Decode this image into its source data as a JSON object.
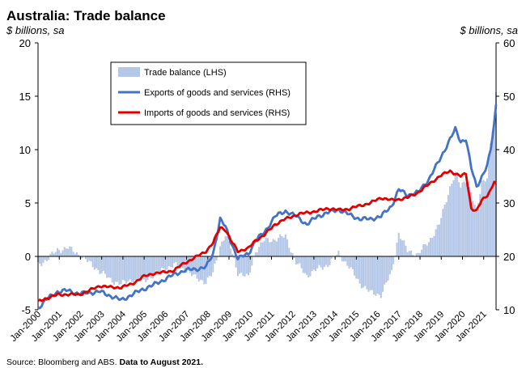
{
  "chart_data": {
    "type": "bar+line",
    "title": "Australia: Trade balance",
    "left_axis_label": "$ billions, sa",
    "right_axis_label": "$ billions, sa",
    "left_axis": {
      "min": -5,
      "max": 20,
      "ticks": [
        -5,
        0,
        5,
        10,
        15,
        20
      ]
    },
    "right_axis": {
      "min": 10,
      "max": 60,
      "ticks": [
        10,
        20,
        30,
        40,
        50,
        60
      ]
    },
    "x_tick_labels": [
      "Jan-2000",
      "Jan-2001",
      "Jan-2002",
      "Jan-2003",
      "Jan-2004",
      "Jan-2005",
      "Jan-2006",
      "Jan-2007",
      "Jan-2008",
      "Jan-2009",
      "Jan-2010",
      "Jan-2011",
      "Jan-2012",
      "Jan-2013",
      "Jan-2014",
      "Jan-2015",
      "Jan-2016",
      "Jan-2017",
      "Jan-2018",
      "Jan-2019",
      "Jan-2020",
      "Jan-2021"
    ],
    "x_range": [
      "Jan-2000",
      "Aug-2021"
    ],
    "legend_position": "top-left",
    "series": [
      {
        "name": "Trade balance (LHS)",
        "kind": "bar",
        "axis": "left",
        "color": "#b4c7e7",
        "anchors": [
          [
            "2000-01",
            -0.8
          ],
          [
            "2000-06",
            -0.3
          ],
          [
            "2000-12",
            0.6
          ],
          [
            "2001-06",
            0.8
          ],
          [
            "2001-12",
            0.2
          ],
          [
            "2002-06",
            -0.6
          ],
          [
            "2002-12",
            -1.4
          ],
          [
            "2003-06",
            -2.2
          ],
          [
            "2003-12",
            -2.6
          ],
          [
            "2004-06",
            -2.2
          ],
          [
            "2004-12",
            -2.4
          ],
          [
            "2005-06",
            -1.8
          ],
          [
            "2005-12",
            -1.2
          ],
          [
            "2006-06",
            -0.8
          ],
          [
            "2006-12",
            -1.2
          ],
          [
            "2007-06",
            -2.0
          ],
          [
            "2007-12",
            -2.4
          ],
          [
            "2008-04",
            -1.6
          ],
          [
            "2008-08",
            1.0
          ],
          [
            "2008-11",
            2.0
          ],
          [
            "2009-02",
            0.8
          ],
          [
            "2009-06",
            -1.5
          ],
          [
            "2009-12",
            -2.0
          ],
          [
            "2010-04",
            0.5
          ],
          [
            "2010-09",
            1.5
          ],
          [
            "2011-03",
            1.6
          ],
          [
            "2011-09",
            1.9
          ],
          [
            "2012-03",
            -0.6
          ],
          [
            "2012-09",
            -1.8
          ],
          [
            "2013-03",
            -1.2
          ],
          [
            "2013-09",
            -0.8
          ],
          [
            "2014-03",
            0.3
          ],
          [
            "2014-09",
            -1.0
          ],
          [
            "2015-03",
            -2.5
          ],
          [
            "2015-09",
            -3.4
          ],
          [
            "2016-03",
            -3.6
          ],
          [
            "2016-09",
            -1.5
          ],
          [
            "2017-01",
            2.2
          ],
          [
            "2017-06",
            0.5
          ],
          [
            "2017-12",
            0.2
          ],
          [
            "2018-06",
            1.4
          ],
          [
            "2018-12",
            3.0
          ],
          [
            "2019-06",
            6.5
          ],
          [
            "2019-09",
            7.8
          ],
          [
            "2019-12",
            6.5
          ],
          [
            "2020-03",
            7.2
          ],
          [
            "2020-06",
            6.0
          ],
          [
            "2020-09",
            4.0
          ],
          [
            "2020-12",
            7.0
          ],
          [
            "2021-03",
            7.5
          ],
          [
            "2021-05",
            10.5
          ],
          [
            "2021-07",
            13.0
          ],
          [
            "2021-08",
            15.1
          ]
        ]
      },
      {
        "name": "Exports of goods and services (RHS)",
        "kind": "line",
        "axis": "right",
        "color": "#4472c4",
        "anchors": [
          [
            "2000-01",
            10.3
          ],
          [
            "2000-06",
            12.0
          ],
          [
            "2000-12",
            13.4
          ],
          [
            "2001-06",
            13.6
          ],
          [
            "2001-12",
            13.0
          ],
          [
            "2002-06",
            13.2
          ],
          [
            "2002-12",
            13.4
          ],
          [
            "2003-06",
            12.6
          ],
          [
            "2003-12",
            11.8
          ],
          [
            "2004-06",
            12.8
          ],
          [
            "2004-12",
            13.8
          ],
          [
            "2005-06",
            14.6
          ],
          [
            "2005-12",
            15.6
          ],
          [
            "2006-06",
            16.6
          ],
          [
            "2006-12",
            17.4
          ],
          [
            "2007-06",
            17.6
          ],
          [
            "2007-12",
            18.0
          ],
          [
            "2008-04",
            20.5
          ],
          [
            "2008-08",
            27.0
          ],
          [
            "2008-11",
            25.5
          ],
          [
            "2009-02",
            22.8
          ],
          [
            "2009-06",
            19.6
          ],
          [
            "2009-12",
            20.5
          ],
          [
            "2010-04",
            23.0
          ],
          [
            "2010-09",
            24.5
          ],
          [
            "2011-03",
            27.5
          ],
          [
            "2011-09",
            28.5
          ],
          [
            "2012-03",
            27.5
          ],
          [
            "2012-09",
            26.0
          ],
          [
            "2013-03",
            27.5
          ],
          [
            "2013-09",
            28.2
          ],
          [
            "2014-03",
            28.8
          ],
          [
            "2014-09",
            27.8
          ],
          [
            "2015-03",
            27.0
          ],
          [
            "2015-09",
            27.0
          ],
          [
            "2016-03",
            27.5
          ],
          [
            "2016-09",
            29.5
          ],
          [
            "2017-01",
            32.5
          ],
          [
            "2017-06",
            31.5
          ],
          [
            "2017-12",
            32.0
          ],
          [
            "2018-06",
            34.5
          ],
          [
            "2018-12",
            38.0
          ],
          [
            "2019-06",
            42.0
          ],
          [
            "2019-09",
            43.8
          ],
          [
            "2019-12",
            41.5
          ],
          [
            "2020-03",
            42.0
          ],
          [
            "2020-06",
            36.5
          ],
          [
            "2020-09",
            33.0
          ],
          [
            "2020-12",
            35.0
          ],
          [
            "2021-03",
            37.0
          ],
          [
            "2021-05",
            40.0
          ],
          [
            "2021-07",
            45.0
          ],
          [
            "2021-08",
            48.5
          ]
        ]
      },
      {
        "name": "Imports of goods and services (RHS)",
        "kind": "line",
        "axis": "right",
        "color": "#e00000",
        "anchors": [
          [
            "2000-01",
            11.5
          ],
          [
            "2000-06",
            12.2
          ],
          [
            "2000-12",
            12.8
          ],
          [
            "2001-06",
            12.9
          ],
          [
            "2001-12",
            12.8
          ],
          [
            "2002-06",
            13.6
          ],
          [
            "2002-12",
            14.5
          ],
          [
            "2003-06",
            14.2
          ],
          [
            "2003-12",
            14.2
          ],
          [
            "2004-06",
            14.8
          ],
          [
            "2004-12",
            16.1
          ],
          [
            "2005-06",
            16.8
          ],
          [
            "2005-12",
            17.0
          ],
          [
            "2006-06",
            17.4
          ],
          [
            "2006-12",
            18.8
          ],
          [
            "2007-06",
            19.8
          ],
          [
            "2007-12",
            21.0
          ],
          [
            "2008-04",
            22.5
          ],
          [
            "2008-08",
            25.5
          ],
          [
            "2008-11",
            25.0
          ],
          [
            "2009-02",
            23.0
          ],
          [
            "2009-06",
            21.0
          ],
          [
            "2009-12",
            21.5
          ],
          [
            "2010-04",
            23.0
          ],
          [
            "2010-09",
            24.0
          ],
          [
            "2011-03",
            26.0
          ],
          [
            "2011-09",
            27.0
          ],
          [
            "2012-03",
            27.8
          ],
          [
            "2012-09",
            28.2
          ],
          [
            "2013-03",
            28.5
          ],
          [
            "2013-09",
            29.0
          ],
          [
            "2014-03",
            28.7
          ],
          [
            "2014-09",
            28.9
          ],
          [
            "2015-03",
            29.5
          ],
          [
            "2015-09",
            30.0
          ],
          [
            "2016-03",
            31.0
          ],
          [
            "2016-09",
            30.5
          ],
          [
            "2017-01",
            30.7
          ],
          [
            "2017-06",
            31.0
          ],
          [
            "2017-12",
            32.0
          ],
          [
            "2018-06",
            33.5
          ],
          [
            "2018-12",
            35.0
          ],
          [
            "2019-06",
            36.0
          ],
          [
            "2019-09",
            35.5
          ],
          [
            "2019-12",
            35.0
          ],
          [
            "2020-03",
            35.5
          ],
          [
            "2020-06",
            29.0
          ],
          [
            "2020-09",
            28.5
          ],
          [
            "2020-12",
            30.5
          ],
          [
            "2021-03",
            31.5
          ],
          [
            "2021-05",
            32.5
          ],
          [
            "2021-07",
            34.0
          ],
          [
            "2021-08",
            33.4
          ]
        ]
      }
    ]
  },
  "source": {
    "text": "Source: Bloomberg and ABS.",
    "bold": "Data to August 2021."
  }
}
